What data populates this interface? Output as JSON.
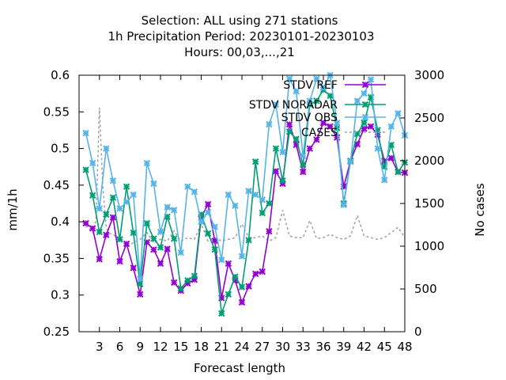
{
  "chart_data": {
    "type": "line",
    "title_lines": [
      "Selection: ALL using   271 stations",
      "1h Precipitation   Period: 20230101-20230103",
      "Hours:  00,03,...,21"
    ],
    "xlabel": "Forecast length",
    "ylabel": "mm/1h",
    "y2label": "No cases",
    "xlim": [
      0,
      48
    ],
    "ylim": [
      0.25,
      0.6
    ],
    "y2lim": [
      0,
      3000
    ],
    "xticks": [
      3,
      6,
      9,
      12,
      15,
      18,
      21,
      24,
      27,
      30,
      33,
      36,
      39,
      42,
      45,
      48
    ],
    "yticks": [
      0.25,
      0.3,
      0.35,
      0.4,
      0.45,
      0.5,
      0.55,
      0.6
    ],
    "y2ticks": [
      0,
      500,
      1000,
      1500,
      2000,
      2500,
      3000
    ],
    "legend_position": "top-right",
    "series": [
      {
        "name": "STDV REF",
        "color": "#9400d3",
        "marker": "x",
        "x": [
          1,
          2,
          3,
          4,
          5,
          6,
          7,
          8,
          9,
          10,
          11,
          12,
          13,
          14,
          15,
          16,
          17,
          18,
          19,
          20,
          21,
          22,
          23,
          24,
          25,
          26,
          27,
          28,
          29,
          30,
          31,
          32,
          33,
          34,
          35,
          36,
          37,
          38,
          39,
          40,
          41,
          42,
          43,
          44,
          45,
          46,
          47,
          48
        ],
        "values": [
          0.398,
          0.391,
          0.349,
          0.382,
          0.406,
          0.346,
          0.37,
          0.337,
          0.301,
          0.372,
          0.362,
          0.343,
          0.363,
          0.317,
          0.306,
          0.316,
          0.321,
          0.406,
          0.424,
          0.374,
          0.296,
          0.343,
          0.32,
          0.29,
          0.312,
          0.329,
          0.332,
          0.387,
          0.469,
          0.452,
          0.533,
          0.505,
          0.468,
          0.5,
          0.512,
          0.535,
          0.53,
          0.515,
          0.448,
          0.483,
          0.506,
          0.527,
          0.53,
          0.519,
          0.483,
          0.487,
          0.468,
          0.467
        ]
      },
      {
        "name": "STDV NORADAR",
        "color": "#009e73",
        "marker": "x",
        "x": [
          1,
          2,
          3,
          4,
          5,
          6,
          7,
          8,
          9,
          10,
          11,
          12,
          13,
          14,
          15,
          16,
          17,
          18,
          19,
          20,
          21,
          22,
          23,
          24,
          25,
          26,
          27,
          28,
          29,
          30,
          31,
          32,
          33,
          34,
          35,
          36,
          37,
          38,
          39,
          40,
          41,
          42,
          43,
          44,
          45,
          46,
          47,
          48
        ],
        "values": [
          0.471,
          0.436,
          0.386,
          0.41,
          0.433,
          0.376,
          0.448,
          0.385,
          0.315,
          0.398,
          0.377,
          0.365,
          0.407,
          0.377,
          0.309,
          0.32,
          0.326,
          0.41,
          0.384,
          0.362,
          0.275,
          0.301,
          0.325,
          0.311,
          0.375,
          0.482,
          0.412,
          0.425,
          0.5,
          0.456,
          0.523,
          0.513,
          0.478,
          0.56,
          0.565,
          0.58,
          0.572,
          0.528,
          0.425,
          0.483,
          0.52,
          0.535,
          0.57,
          0.525,
          0.475,
          0.505,
          0.468,
          0.481
        ]
      },
      {
        "name": "STDV OBS",
        "color": "#56b4e9",
        "marker": "x",
        "x": [
          1,
          2,
          3,
          4,
          5,
          6,
          7,
          8,
          9,
          10,
          11,
          12,
          13,
          14,
          15,
          16,
          17,
          18,
          19,
          20,
          21,
          22,
          23,
          24,
          25,
          26,
          27,
          28,
          29,
          30,
          31,
          32,
          33,
          34,
          35,
          36,
          37,
          38,
          39,
          40,
          41,
          42,
          43,
          44,
          45,
          46,
          47,
          48
        ],
        "values": [
          0.521,
          0.48,
          0.418,
          0.5,
          0.456,
          0.418,
          0.427,
          0.437,
          0.322,
          0.48,
          0.452,
          0.386,
          0.42,
          0.416,
          0.358,
          0.448,
          0.441,
          0.4,
          0.413,
          0.393,
          0.348,
          0.437,
          0.422,
          0.353,
          0.442,
          0.437,
          0.43,
          0.533,
          0.56,
          0.495,
          0.595,
          0.578,
          0.49,
          0.565,
          0.595,
          0.583,
          0.6,
          0.535,
          0.423,
          0.482,
          0.565,
          0.575,
          0.594,
          0.5,
          0.457,
          0.53,
          0.548,
          0.518
        ]
      },
      {
        "name": "CASES",
        "color": "#a0a0a0",
        "marker": "none",
        "dashed": true,
        "x": [
          1,
          2,
          2.5,
          3,
          3.5,
          4,
          4.5,
          5,
          5.5,
          6,
          7,
          8,
          9,
          10,
          11,
          12,
          13,
          14,
          15,
          16,
          17,
          18,
          19,
          20,
          21,
          22,
          23,
          24,
          25,
          26,
          27,
          28,
          29,
          30,
          31,
          32,
          33,
          34,
          35,
          36,
          37,
          38,
          39,
          40,
          41,
          42,
          43,
          44,
          45,
          46,
          47,
          48
        ],
        "values": [
          1240,
          1160,
          1300,
          2620,
          1700,
          1220,
          1150,
          1140,
          1100,
          1100,
          1000,
          1040,
          1080,
          1160,
          1040,
          1080,
          1060,
          1180,
          1060,
          1100,
          1080,
          1260,
          1060,
          1100,
          1060,
          1080,
          1100,
          1260,
          1100,
          1100,
          1120,
          1060,
          1100,
          1420,
          1120,
          1100,
          1100,
          1300,
          1090,
          1100,
          1140,
          1100,
          1080,
          1120,
          1360,
          1120,
          1100,
          1080,
          1100,
          1160,
          1220,
          1100
        ]
      }
    ]
  }
}
